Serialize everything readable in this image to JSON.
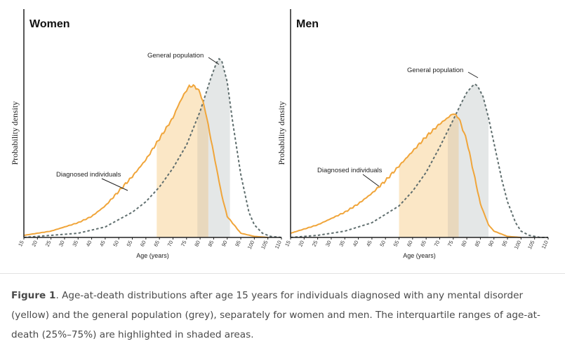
{
  "chart_data": [
    {
      "type": "area",
      "title": "Women",
      "xlabel": "Age (years)",
      "ylabel": "Probability density",
      "xlim": [
        15,
        110
      ],
      "ylim": [
        0,
        1
      ],
      "x_ticks": [
        15,
        20,
        25,
        30,
        35,
        40,
        45,
        50,
        55,
        60,
        65,
        70,
        75,
        80,
        85,
        90,
        95,
        100,
        105,
        110
      ],
      "series": [
        {
          "name": "Diagnosed individuals",
          "style": "solid",
          "color": "#f0a53a",
          "x": [
            15,
            20,
            25,
            30,
            35,
            40,
            45,
            50,
            55,
            60,
            65,
            70,
            72,
            74,
            76,
            78,
            80,
            82,
            85,
            88,
            90,
            95,
            100,
            105
          ],
          "y": [
            0.01,
            0.02,
            0.03,
            0.05,
            0.07,
            0.1,
            0.15,
            0.22,
            0.29,
            0.37,
            0.47,
            0.57,
            0.63,
            0.68,
            0.72,
            0.72,
            0.69,
            0.6,
            0.4,
            0.2,
            0.1,
            0.02,
            0.005,
            0.0
          ],
          "iqr": [
            64,
            83
          ]
        },
        {
          "name": "General population",
          "style": "dashed",
          "color": "#5f6e6e",
          "x": [
            15,
            25,
            35,
            45,
            55,
            60,
            65,
            70,
            75,
            80,
            84,
            86,
            87,
            88,
            90,
            92,
            95,
            98,
            100,
            103,
            106,
            110
          ],
          "y": [
            0.0,
            0.01,
            0.02,
            0.05,
            0.12,
            0.17,
            0.24,
            0.33,
            0.44,
            0.6,
            0.76,
            0.83,
            0.85,
            0.84,
            0.74,
            0.55,
            0.3,
            0.12,
            0.06,
            0.02,
            0.005,
            0.0
          ],
          "iqr": [
            79,
            91
          ]
        }
      ],
      "annotations": [
        "General population",
        "Diagnosed individuals"
      ]
    },
    {
      "type": "area",
      "title": "Men",
      "xlabel": "Age (years)",
      "ylabel": "Probability density",
      "xlim": [
        15,
        110
      ],
      "ylim": [
        0,
        1
      ],
      "x_ticks": [
        15,
        20,
        25,
        30,
        35,
        40,
        45,
        50,
        55,
        60,
        65,
        70,
        75,
        80,
        85,
        90,
        95,
        100,
        105,
        110
      ],
      "series": [
        {
          "name": "Diagnosed individuals",
          "style": "solid",
          "color": "#f0a53a",
          "x": [
            15,
            20,
            25,
            30,
            35,
            40,
            45,
            50,
            55,
            60,
            65,
            70,
            73,
            75,
            77,
            80,
            82,
            85,
            88,
            90,
            95,
            100
          ],
          "y": [
            0.02,
            0.04,
            0.06,
            0.09,
            0.12,
            0.16,
            0.21,
            0.27,
            0.34,
            0.41,
            0.48,
            0.54,
            0.57,
            0.59,
            0.57,
            0.46,
            0.34,
            0.16,
            0.06,
            0.03,
            0.005,
            0.0
          ],
          "iqr": [
            55,
            77
          ]
        },
        {
          "name": "General population",
          "style": "dashed",
          "color": "#5f6e6e",
          "x": [
            15,
            25,
            35,
            45,
            55,
            60,
            65,
            70,
            75,
            78,
            80,
            82,
            83,
            84,
            86,
            88,
            90,
            93,
            95,
            98,
            100,
            103,
            107,
            110
          ],
          "y": [
            0.0,
            0.01,
            0.03,
            0.07,
            0.15,
            0.22,
            0.31,
            0.43,
            0.56,
            0.64,
            0.69,
            0.72,
            0.73,
            0.72,
            0.67,
            0.57,
            0.45,
            0.27,
            0.17,
            0.07,
            0.03,
            0.01,
            0.0,
            0.0
          ],
          "iqr": [
            73,
            88
          ]
        }
      ],
      "annotations": [
        "General population",
        "Diagnosed individuals"
      ]
    }
  ],
  "caption": {
    "label": "Figure 1",
    "text": ". Age-at-death distributions after age 15 years for individuals diagnosed with any mental disorder (yellow) and the general population (grey), separately for women and men. The interquartile ranges of age-at-death (25%–75%) are highlighted in shaded areas."
  }
}
